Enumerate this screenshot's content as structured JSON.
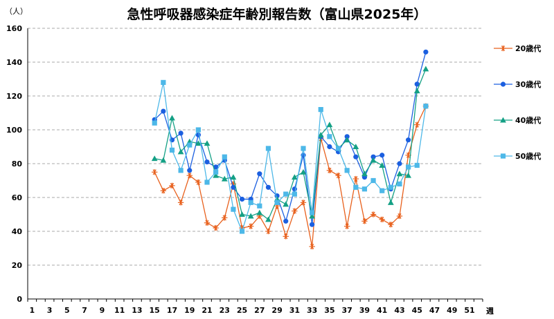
{
  "chart_data": {
    "type": "line",
    "title": "急性呼吸器感染症年齢別報告数（富山県2025年）",
    "ylabel": "（人）",
    "xlabel": "週",
    "ylim": [
      0,
      160
    ],
    "yticks": [
      0,
      20,
      40,
      60,
      80,
      100,
      120,
      140,
      160
    ],
    "xlim": [
      1,
      52
    ],
    "xticks": [
      1,
      3,
      5,
      7,
      9,
      11,
      13,
      15,
      17,
      19,
      21,
      23,
      25,
      27,
      29,
      31,
      33,
      35,
      37,
      39,
      41,
      43,
      45,
      47,
      49,
      51
    ],
    "grid": "horizontal dashed",
    "legend": "right",
    "series": [
      {
        "name": "20歳代",
        "color": "#E8601C",
        "marker": "star",
        "x": [
          15,
          16,
          17,
          18,
          19,
          20,
          21,
          22,
          23,
          24,
          25,
          26,
          27,
          28,
          29,
          30,
          31,
          32,
          33,
          34,
          35,
          36,
          37,
          38,
          39,
          40,
          41,
          42,
          43,
          44,
          45,
          46
        ],
        "values": [
          75,
          64,
          67,
          57,
          73,
          69,
          45,
          42,
          48,
          68,
          42,
          43,
          49,
          40,
          55,
          37,
          52,
          57,
          31,
          95,
          76,
          73,
          43,
          71,
          46,
          50,
          47,
          44,
          49,
          85,
          103,
          114
        ]
      },
      {
        "name": "30歳代",
        "color": "#1B5FE0",
        "marker": "circle",
        "x": [
          15,
          16,
          17,
          18,
          19,
          20,
          21,
          22,
          23,
          24,
          25,
          26,
          27,
          28,
          29,
          30,
          31,
          32,
          33,
          34,
          35,
          36,
          37,
          38,
          39,
          40,
          41,
          42,
          43,
          44,
          45,
          46
        ],
        "values": [
          106,
          111,
          94,
          98,
          76,
          97,
          81,
          78,
          82,
          66,
          59,
          59,
          74,
          66,
          61,
          46,
          65,
          85,
          44,
          96,
          90,
          87,
          96,
          84,
          72,
          84,
          85,
          65,
          80,
          94,
          127,
          146
        ]
      },
      {
        "name": "40歳代",
        "color": "#14A085",
        "marker": "triangle",
        "x": [
          15,
          16,
          17,
          18,
          19,
          20,
          21,
          22,
          23,
          24,
          25,
          26,
          27,
          28,
          29,
          30,
          31,
          32,
          33,
          34,
          35,
          36,
          37,
          38,
          39,
          40,
          41,
          42,
          43,
          44,
          45,
          46
        ],
        "values": [
          83,
          82,
          107,
          87,
          93,
          92,
          92,
          73,
          71,
          72,
          50,
          49,
          51,
          47,
          59,
          56,
          72,
          75,
          49,
          97,
          103,
          89,
          94,
          90,
          74,
          82,
          79,
          57,
          74,
          73,
          123,
          136
        ]
      },
      {
        "name": "50歳代",
        "color": "#4DB8E8",
        "marker": "square",
        "x": [
          15,
          16,
          17,
          18,
          19,
          20,
          21,
          22,
          23,
          24,
          25,
          26,
          27,
          28,
          29,
          30,
          31,
          32,
          33,
          34,
          35,
          36,
          37,
          38,
          39,
          40,
          41,
          42,
          43,
          44,
          45,
          46
        ],
        "values": [
          104,
          128,
          88,
          76,
          91,
          100,
          69,
          75,
          84,
          53,
          40,
          57,
          55,
          89,
          57,
          62,
          62,
          89,
          51,
          112,
          96,
          89,
          76,
          66,
          65,
          70,
          64,
          66,
          68,
          78,
          79,
          114
        ]
      }
    ]
  }
}
